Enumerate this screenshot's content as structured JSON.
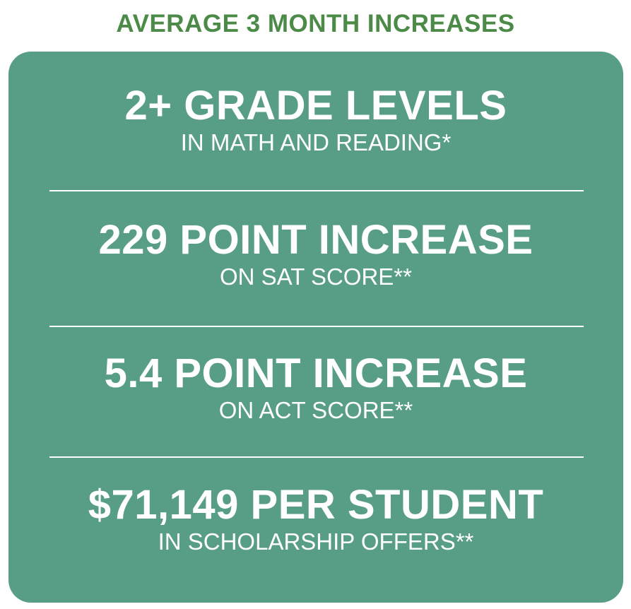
{
  "title": "AVERAGE 3 MONTH INCREASES",
  "colors": {
    "title": "#4b8a47",
    "panel": "#589e86",
    "text": "#ffffff"
  },
  "stats": [
    {
      "headline": "2+ GRADE LEVELS",
      "subtitle": "IN MATH AND READING*"
    },
    {
      "headline": "229 POINT INCREASE",
      "subtitle": "ON SAT SCORE**"
    },
    {
      "headline": "5.4 POINT INCREASE",
      "subtitle": "ON ACT SCORE**"
    },
    {
      "headline": "$71,149 PER STUDENT",
      "subtitle": "IN SCHOLARSHIP OFFERS**"
    }
  ]
}
